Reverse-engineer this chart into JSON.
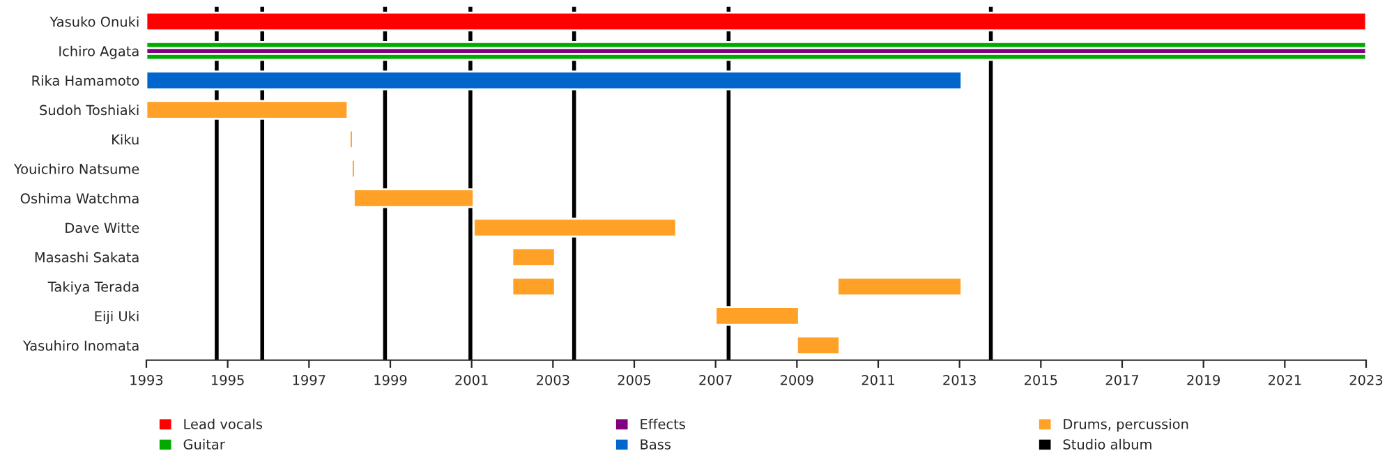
{
  "chart_data": {
    "type": "bar",
    "orientation": "horizontal",
    "categories": [
      "Yasuko Onuki",
      "Ichiro Agata",
      "Rika Hamamoto",
      "Sudoh Toshiaki",
      "Kiku",
      "Youichiro Natsume",
      "Oshima Watchma",
      "Dave Witte",
      "Masashi Sakata",
      "Takiya Terada",
      "Eiji Uki",
      "Yasuhiro Inomata"
    ],
    "series": [
      {
        "name": "Lead vocals",
        "color": "#ff0000",
        "base": [
          1993,
          null,
          null,
          null,
          null,
          null,
          null,
          null,
          null,
          null,
          null,
          null
        ],
        "values": [
          30,
          null,
          null,
          null,
          null,
          null,
          null,
          null,
          null,
          null,
          null,
          null
        ]
      },
      {
        "name": "Guitar",
        "color": "#00aa00",
        "base": [
          null,
          1993,
          null,
          null,
          null,
          null,
          null,
          null,
          null,
          null,
          null,
          null
        ],
        "values": [
          null,
          30,
          null,
          null,
          null,
          null,
          null,
          null,
          null,
          null,
          null,
          null
        ]
      },
      {
        "name": "Effects",
        "color": "#800080",
        "base": [
          null,
          1993,
          null,
          null,
          null,
          null,
          null,
          null,
          null,
          null,
          null,
          null
        ],
        "values": [
          null,
          30,
          null,
          null,
          null,
          null,
          null,
          null,
          null,
          null,
          null,
          null
        ]
      },
      {
        "name": "Bass",
        "color": "#0066cc",
        "base": [
          null,
          null,
          1993,
          null,
          null,
          null,
          null,
          null,
          null,
          null,
          null,
          null
        ],
        "values": [
          null,
          null,
          20.05,
          null,
          null,
          null,
          null,
          null,
          null,
          null,
          null,
          null
        ]
      },
      {
        "name": "Drums, percussion",
        "color": "#ffa126",
        "base": [
          null,
          null,
          null,
          1993,
          1998.0,
          1998.05,
          1998.1,
          2001.05,
          2002.0,
          2002.0,
          2007.0,
          2009.0
        ],
        "values": [
          null,
          null,
          null,
          4.95,
          0.08,
          0.08,
          2.95,
          4.98,
          1.05,
          1.05,
          2.05,
          1.05
        ]
      },
      {
        "color": "#ffa126",
        "base": [
          null,
          null,
          null,
          null,
          null,
          null,
          null,
          null,
          null,
          2010.0,
          null,
          null
        ],
        "values": [
          null,
          null,
          null,
          null,
          null,
          null,
          null,
          null,
          null,
          3.05,
          null,
          null
        ]
      }
    ],
    "ref_lines": [
      {
        "axis": "x",
        "value": 1994.73,
        "label": "Studio album",
        "color": "#000000"
      },
      {
        "axis": "x",
        "value": 1995.85,
        "color": "#000000"
      },
      {
        "axis": "x",
        "value": 1998.87,
        "color": "#000000"
      },
      {
        "axis": "x",
        "value": 2000.97,
        "color": "#000000"
      },
      {
        "axis": "x",
        "value": 2003.52,
        "color": "#000000"
      },
      {
        "axis": "x",
        "value": 2007.32,
        "color": "#000000"
      },
      {
        "axis": "x",
        "value": 2013.77,
        "color": "#000000"
      }
    ],
    "xlim": [
      1993,
      2023
    ],
    "xticks": [
      1993,
      1995,
      1997,
      1999,
      2001,
      2003,
      2005,
      2007,
      2009,
      2011,
      2013,
      2015,
      2017,
      2019,
      2021,
      2023
    ],
    "grid": false,
    "legend": "bottom"
  }
}
